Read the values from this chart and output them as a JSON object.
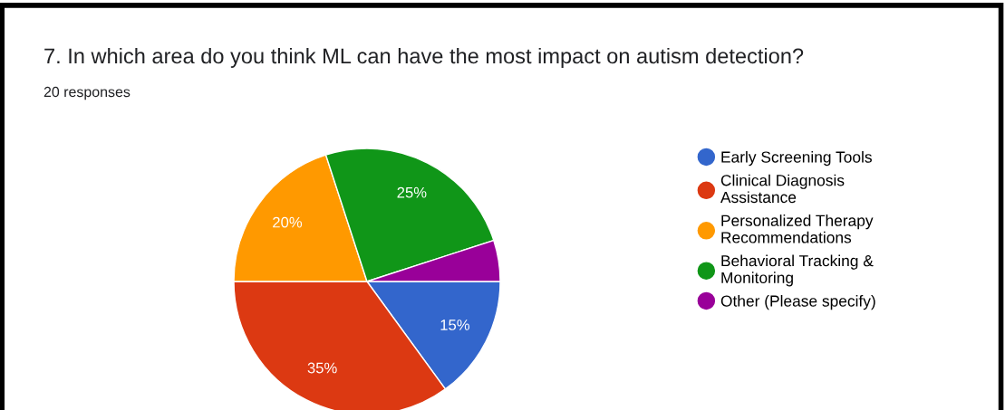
{
  "chart_data": {
    "type": "pie",
    "title": "7. In which area do you think ML can have the most impact on autism detection?",
    "subtitle": "20 responses",
    "categories": [
      "Early Screening Tools",
      "Clinical Diagnosis Assistance",
      "Personalized Therapy Recommendations",
      "Behavioral Tracking & Monitoring",
      "Other (Please specify)"
    ],
    "values": [
      15,
      35,
      20,
      25,
      5
    ],
    "colors": [
      "#3366cc",
      "#dc3912",
      "#ff9900",
      "#109618",
      "#990099"
    ],
    "value_labels": [
      "15%",
      "35%",
      "20%",
      "25%",
      null
    ],
    "legend": "right"
  }
}
